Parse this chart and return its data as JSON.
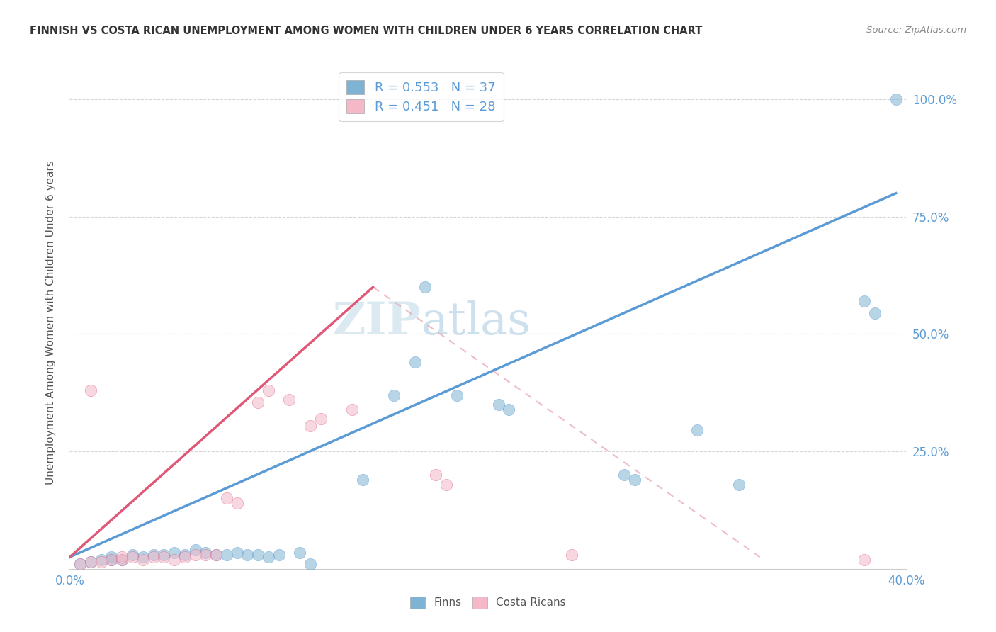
{
  "title": "FINNISH VS COSTA RICAN UNEMPLOYMENT AMONG WOMEN WITH CHILDREN UNDER 6 YEARS CORRELATION CHART",
  "source": "Source: ZipAtlas.com",
  "ylabel": "Unemployment Among Women with Children Under 6 years",
  "xlim": [
    0.0,
    0.4
  ],
  "ylim": [
    0.0,
    1.05
  ],
  "yticks": [
    0.25,
    0.5,
    0.75,
    1.0
  ],
  "ytick_labels": [
    "25.0%",
    "50.0%",
    "75.0%",
    "100.0%"
  ],
  "xticks": [
    0.0,
    0.4
  ],
  "xtick_labels": [
    "0.0%",
    "40.0%"
  ],
  "legend_R_N": [
    {
      "R": "0.553",
      "N": "37"
    },
    {
      "R": "0.451",
      "N": "28"
    }
  ],
  "finns_scatter": [
    [
      0.005,
      0.01
    ],
    [
      0.01,
      0.015
    ],
    [
      0.015,
      0.02
    ],
    [
      0.02,
      0.02
    ],
    [
      0.02,
      0.025
    ],
    [
      0.025,
      0.02
    ],
    [
      0.03,
      0.03
    ],
    [
      0.035,
      0.025
    ],
    [
      0.04,
      0.03
    ],
    [
      0.045,
      0.03
    ],
    [
      0.05,
      0.035
    ],
    [
      0.055,
      0.03
    ],
    [
      0.06,
      0.04
    ],
    [
      0.065,
      0.035
    ],
    [
      0.07,
      0.03
    ],
    [
      0.075,
      0.03
    ],
    [
      0.08,
      0.035
    ],
    [
      0.085,
      0.03
    ],
    [
      0.09,
      0.03
    ],
    [
      0.095,
      0.025
    ],
    [
      0.1,
      0.03
    ],
    [
      0.11,
      0.035
    ],
    [
      0.115,
      0.01
    ],
    [
      0.14,
      0.19
    ],
    [
      0.155,
      0.37
    ],
    [
      0.165,
      0.44
    ],
    [
      0.17,
      0.6
    ],
    [
      0.185,
      0.37
    ],
    [
      0.205,
      0.35
    ],
    [
      0.21,
      0.34
    ],
    [
      0.265,
      0.2
    ],
    [
      0.27,
      0.19
    ],
    [
      0.3,
      0.295
    ],
    [
      0.32,
      0.18
    ],
    [
      0.38,
      0.57
    ],
    [
      0.385,
      0.545
    ],
    [
      0.395,
      1.0
    ]
  ],
  "costa_scatter": [
    [
      0.005,
      0.01
    ],
    [
      0.01,
      0.015
    ],
    [
      0.015,
      0.015
    ],
    [
      0.02,
      0.02
    ],
    [
      0.025,
      0.02
    ],
    [
      0.025,
      0.025
    ],
    [
      0.03,
      0.025
    ],
    [
      0.035,
      0.02
    ],
    [
      0.04,
      0.025
    ],
    [
      0.045,
      0.025
    ],
    [
      0.05,
      0.02
    ],
    [
      0.055,
      0.025
    ],
    [
      0.06,
      0.03
    ],
    [
      0.065,
      0.03
    ],
    [
      0.07,
      0.03
    ],
    [
      0.01,
      0.38
    ],
    [
      0.075,
      0.15
    ],
    [
      0.08,
      0.14
    ],
    [
      0.09,
      0.355
    ],
    [
      0.095,
      0.38
    ],
    [
      0.105,
      0.36
    ],
    [
      0.115,
      0.305
    ],
    [
      0.12,
      0.32
    ],
    [
      0.135,
      0.34
    ],
    [
      0.175,
      0.2
    ],
    [
      0.18,
      0.18
    ],
    [
      0.24,
      0.03
    ],
    [
      0.38,
      0.02
    ]
  ],
  "finn_line": [
    0.0,
    0.025,
    0.395,
    0.8
  ],
  "costa_line": [
    0.0,
    0.025,
    0.145,
    0.6
  ],
  "costa_dashed_line": [
    0.145,
    0.6,
    0.33,
    0.025
  ],
  "scatter_blue": "#7fb3d3",
  "scatter_blue_edge": "#5b9bd5",
  "scatter_pink": "#f4b8c8",
  "scatter_pink_edge": "#e06080",
  "line_blue": "#5b9bd5",
  "line_pink": "#e05878",
  "dashed_pink": "#e8a0b0",
  "watermark_zip": "ZIP",
  "watermark_atlas": "atlas",
  "background_color": "#ffffff",
  "grid_color": "#cccccc",
  "tick_color": "#5b9bd5",
  "title_color": "#333333",
  "source_color": "#888888",
  "ylabel_color": "#555555"
}
